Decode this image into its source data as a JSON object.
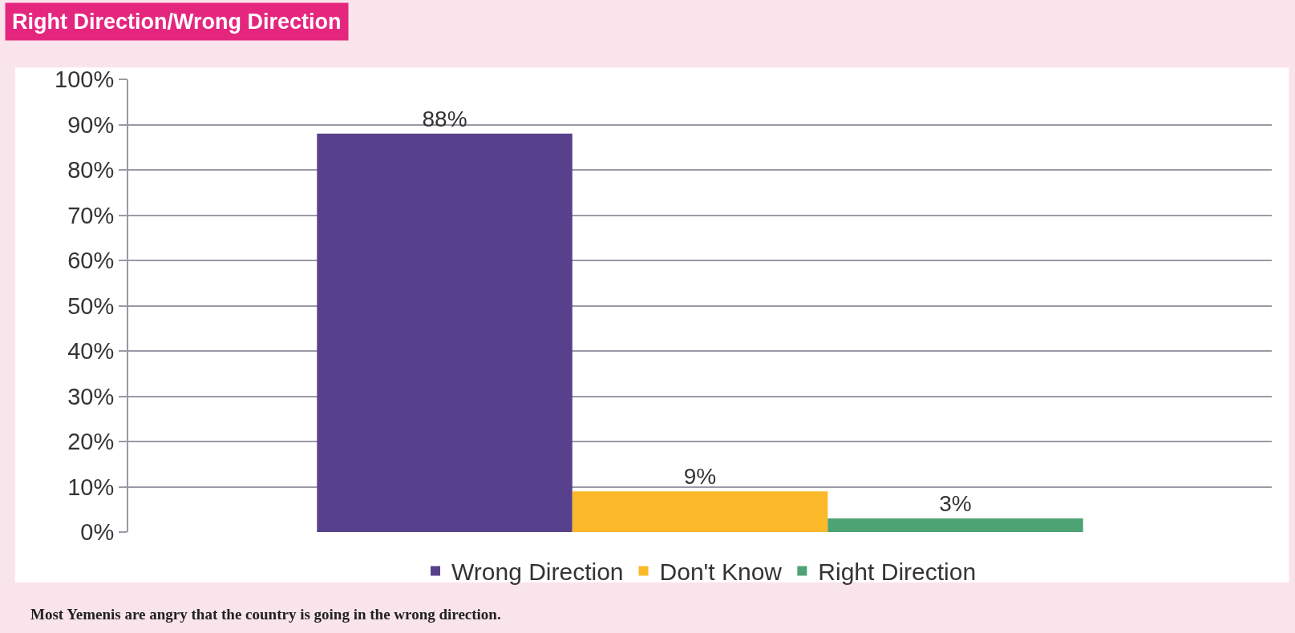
{
  "chart_data": {
    "type": "bar",
    "title": "Right Direction/Wrong Direction",
    "categories": [
      null
    ],
    "series": [
      {
        "name": "Wrong Direction",
        "color": "#58418c",
        "values": [
          88
        ],
        "value_labels": [
          "88%"
        ]
      },
      {
        "name": "Don't Know",
        "color": "#fbb829",
        "values": [
          9
        ],
        "value_labels": [
          "9%"
        ]
      },
      {
        "name": "Right Direction",
        "color": "#4ea374",
        "values": [
          3
        ],
        "value_labels": [
          "3%"
        ]
      }
    ],
    "ylim": [
      0,
      100
    ],
    "yticks": [
      {
        "value": 0,
        "label": "0%"
      },
      {
        "value": 10,
        "label": "10%"
      },
      {
        "value": 20,
        "label": "20%"
      },
      {
        "value": 30,
        "label": "30%"
      },
      {
        "value": 40,
        "label": "40%"
      },
      {
        "value": 50,
        "label": "50%"
      },
      {
        "value": 60,
        "label": "60%"
      },
      {
        "value": 70,
        "label": "70%"
      },
      {
        "value": 80,
        "label": "80%"
      },
      {
        "value": 90,
        "label": "90%"
      },
      {
        "value": 100,
        "label": "100%"
      }
    ],
    "grid": "y",
    "legend": "bottom",
    "tick_labels": "y",
    "annotations": [
      "Most Yemenis are angry that the country is going in the wrong direction."
    ]
  }
}
